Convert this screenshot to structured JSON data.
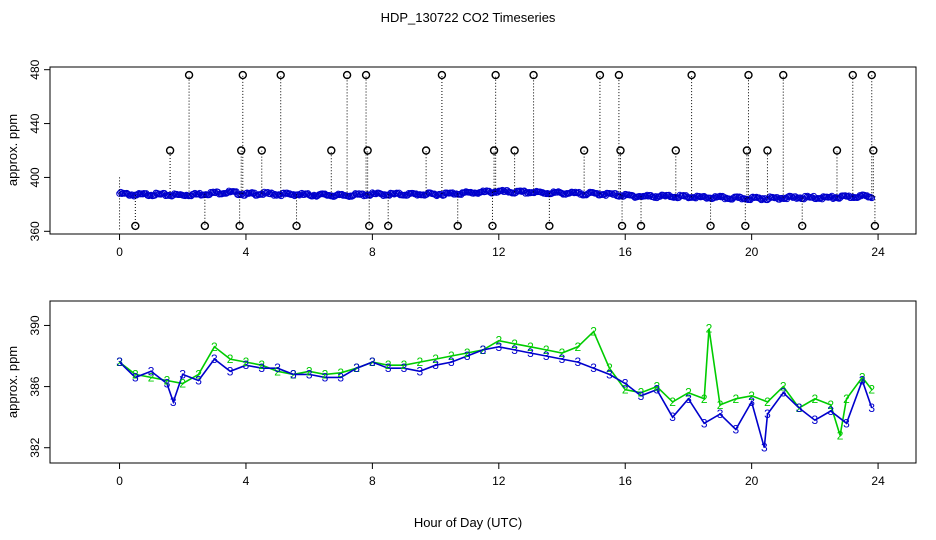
{
  "figure": {
    "title": "HDP_130722  CO2 Timeseries",
    "xlabel": "Hour of Day (UTC)"
  },
  "colors": {
    "frame": "#000000",
    "series_2": "#00cc00",
    "series_3": "#0000cc",
    "base": "#000000",
    "flag": "#00cccc"
  },
  "chart_data": [
    {
      "type": "scatter",
      "ylabel": "approx. ppm",
      "xlim": [
        -2.2,
        25.2
      ],
      "ylim": [
        358,
        482
      ],
      "xticks": [
        "0",
        "4",
        "8",
        "12",
        "16",
        "20",
        "24"
      ],
      "yticks": [
        "360",
        "400",
        "440",
        "480"
      ],
      "grid": false,
      "description_series": [
        "baseline",
        "excursions"
      ],
      "baseline": [
        [
          0.0,
          388
        ],
        [
          0.5,
          387
        ],
        [
          1.0,
          387.5
        ],
        [
          1.5,
          387
        ],
        [
          2.0,
          387
        ],
        [
          2.5,
          387.5
        ],
        [
          3.0,
          388.5
        ],
        [
          3.5,
          389
        ],
        [
          4.0,
          387.5
        ],
        [
          4.5,
          388
        ],
        [
          5.0,
          387.5
        ],
        [
          5.5,
          387.5
        ],
        [
          6.0,
          387
        ],
        [
          6.5,
          387
        ],
        [
          7.0,
          386.5
        ],
        [
          7.5,
          387
        ],
        [
          8.0,
          387.5
        ],
        [
          8.5,
          387.5
        ],
        [
          9.0,
          387.5
        ],
        [
          9.5,
          387.5
        ],
        [
          10.0,
          387.5
        ],
        [
          10.5,
          388
        ],
        [
          11.0,
          388.5
        ],
        [
          11.5,
          389
        ],
        [
          12.0,
          389.5
        ],
        [
          12.5,
          389
        ],
        [
          13.0,
          389
        ],
        [
          13.5,
          388.5
        ],
        [
          14.0,
          388.5
        ],
        [
          14.5,
          388
        ],
        [
          15.0,
          388
        ],
        [
          15.5,
          387.5
        ],
        [
          16.0,
          386.5
        ],
        [
          16.5,
          386
        ],
        [
          17.0,
          386
        ],
        [
          17.5,
          386
        ],
        [
          18.0,
          385.5
        ],
        [
          18.5,
          385
        ],
        [
          19.0,
          385
        ],
        [
          19.5,
          384.5
        ],
        [
          20.0,
          384.5
        ],
        [
          20.5,
          384.5
        ],
        [
          21.0,
          385
        ],
        [
          21.5,
          385
        ],
        [
          22.0,
          385
        ],
        [
          22.5,
          385
        ],
        [
          23.0,
          385.5
        ],
        [
          23.5,
          386
        ],
        [
          23.8,
          386
        ]
      ],
      "excursions": [
        [
          0.5,
          364
        ],
        [
          1.6,
          420
        ],
        [
          2.2,
          476
        ],
        [
          2.7,
          364
        ],
        [
          3.8,
          364
        ],
        [
          3.85,
          420
        ],
        [
          3.9,
          476
        ],
        [
          4.5,
          420
        ],
        [
          5.1,
          476
        ],
        [
          5.6,
          364
        ],
        [
          6.7,
          420
        ],
        [
          7.2,
          476
        ],
        [
          7.8,
          476
        ],
        [
          7.85,
          420
        ],
        [
          7.9,
          364
        ],
        [
          8.5,
          364
        ],
        [
          9.7,
          420
        ],
        [
          10.2,
          476
        ],
        [
          10.7,
          364
        ],
        [
          11.8,
          364
        ],
        [
          11.85,
          420
        ],
        [
          11.9,
          476
        ],
        [
          12.5,
          420
        ],
        [
          13.1,
          476
        ],
        [
          13.6,
          364
        ],
        [
          14.7,
          420
        ],
        [
          15.2,
          476
        ],
        [
          15.8,
          476
        ],
        [
          15.85,
          420
        ],
        [
          15.9,
          364
        ],
        [
          16.5,
          364
        ],
        [
          17.6,
          420
        ],
        [
          18.1,
          476
        ],
        [
          18.7,
          364
        ],
        [
          19.8,
          364
        ],
        [
          19.85,
          420
        ],
        [
          19.9,
          476
        ],
        [
          20.5,
          420
        ],
        [
          21.0,
          476
        ],
        [
          21.6,
          364
        ],
        [
          22.7,
          420
        ],
        [
          23.2,
          476
        ],
        [
          23.8,
          476
        ],
        [
          23.85,
          420
        ],
        [
          23.9,
          364
        ]
      ]
    },
    {
      "type": "line",
      "ylabel": "approx. ppm",
      "xlim": [
        -2.2,
        25.2
      ],
      "ylim": [
        381,
        391.6
      ],
      "xticks": [
        "0",
        "4",
        "8",
        "12",
        "16",
        "20",
        "24"
      ],
      "yticks": [
        "382",
        "386",
        "390"
      ],
      "grid": false,
      "series": [
        {
          "name": "2",
          "values": [
            [
              0.0,
              387.6
            ],
            [
              0.5,
              386.8
            ],
            [
              1.0,
              386.6
            ],
            [
              1.5,
              386.4
            ],
            [
              2.0,
              386.2
            ],
            [
              2.5,
              386.8
            ],
            [
              3.0,
              388.6
            ],
            [
              3.5,
              387.8
            ],
            [
              4.0,
              387.6
            ],
            [
              4.5,
              387.4
            ],
            [
              5.0,
              387.0
            ],
            [
              5.5,
              386.8
            ],
            [
              6.0,
              387.0
            ],
            [
              6.5,
              386.8
            ],
            [
              7.0,
              386.9
            ],
            [
              7.5,
              387.2
            ],
            [
              8.0,
              387.6
            ],
            [
              8.5,
              387.4
            ],
            [
              9.0,
              387.4
            ],
            [
              9.5,
              387.6
            ],
            [
              10.0,
              387.8
            ],
            [
              10.5,
              388.0
            ],
            [
              11.0,
              388.2
            ],
            [
              11.5,
              388.4
            ],
            [
              12.0,
              389.0
            ],
            [
              12.5,
              388.8
            ],
            [
              13.0,
              388.6
            ],
            [
              13.5,
              388.4
            ],
            [
              14.0,
              388.2
            ],
            [
              14.5,
              388.6
            ],
            [
              15.0,
              389.6
            ],
            [
              15.5,
              387.2
            ],
            [
              16.0,
              385.8
            ],
            [
              16.5,
              385.6
            ],
            [
              17.0,
              386.0
            ],
            [
              17.5,
              385.0
            ],
            [
              18.0,
              385.6
            ],
            [
              18.5,
              385.2
            ],
            [
              18.65,
              389.8
            ],
            [
              19.0,
              384.8
            ],
            [
              19.5,
              385.2
            ],
            [
              20.0,
              385.4
            ],
            [
              20.5,
              385.0
            ],
            [
              21.0,
              386.0
            ],
            [
              21.5,
              384.6
            ],
            [
              22.0,
              385.2
            ],
            [
              22.5,
              384.8
            ],
            [
              22.8,
              382.8
            ],
            [
              23.0,
              385.2
            ],
            [
              23.5,
              386.6
            ],
            [
              23.8,
              385.8
            ]
          ]
        },
        {
          "name": "3",
          "values": [
            [
              0.0,
              387.6
            ],
            [
              0.5,
              386.6
            ],
            [
              1.0,
              387.0
            ],
            [
              1.5,
              386.2
            ],
            [
              1.7,
              385.0
            ],
            [
              2.0,
              386.8
            ],
            [
              2.5,
              386.4
            ],
            [
              3.0,
              387.8
            ],
            [
              3.5,
              387.0
            ],
            [
              4.0,
              387.4
            ],
            [
              4.5,
              387.2
            ],
            [
              5.0,
              387.2
            ],
            [
              5.5,
              386.8
            ],
            [
              6.0,
              386.8
            ],
            [
              6.5,
              386.6
            ],
            [
              7.0,
              386.6
            ],
            [
              7.5,
              387.2
            ],
            [
              8.0,
              387.6
            ],
            [
              8.5,
              387.2
            ],
            [
              9.0,
              387.2
            ],
            [
              9.5,
              387.0
            ],
            [
              10.0,
              387.4
            ],
            [
              10.5,
              387.6
            ],
            [
              11.0,
              388.0
            ],
            [
              11.5,
              388.4
            ],
            [
              12.0,
              388.6
            ],
            [
              12.5,
              388.4
            ],
            [
              13.0,
              388.2
            ],
            [
              13.5,
              388.0
            ],
            [
              14.0,
              387.8
            ],
            [
              14.5,
              387.6
            ],
            [
              15.0,
              387.2
            ],
            [
              15.5,
              386.8
            ],
            [
              16.0,
              386.2
            ],
            [
              16.5,
              385.4
            ],
            [
              17.0,
              385.8
            ],
            [
              17.5,
              384.0
            ],
            [
              18.0,
              385.2
            ],
            [
              18.5,
              383.6
            ],
            [
              19.0,
              384.2
            ],
            [
              19.5,
              383.2
            ],
            [
              20.0,
              385.0
            ],
            [
              20.4,
              382.0
            ],
            [
              20.5,
              384.2
            ],
            [
              21.0,
              385.6
            ],
            [
              21.5,
              384.6
            ],
            [
              22.0,
              383.8
            ],
            [
              22.5,
              384.4
            ],
            [
              23.0,
              383.6
            ],
            [
              23.5,
              386.4
            ],
            [
              23.8,
              384.6
            ]
          ]
        }
      ]
    }
  ]
}
